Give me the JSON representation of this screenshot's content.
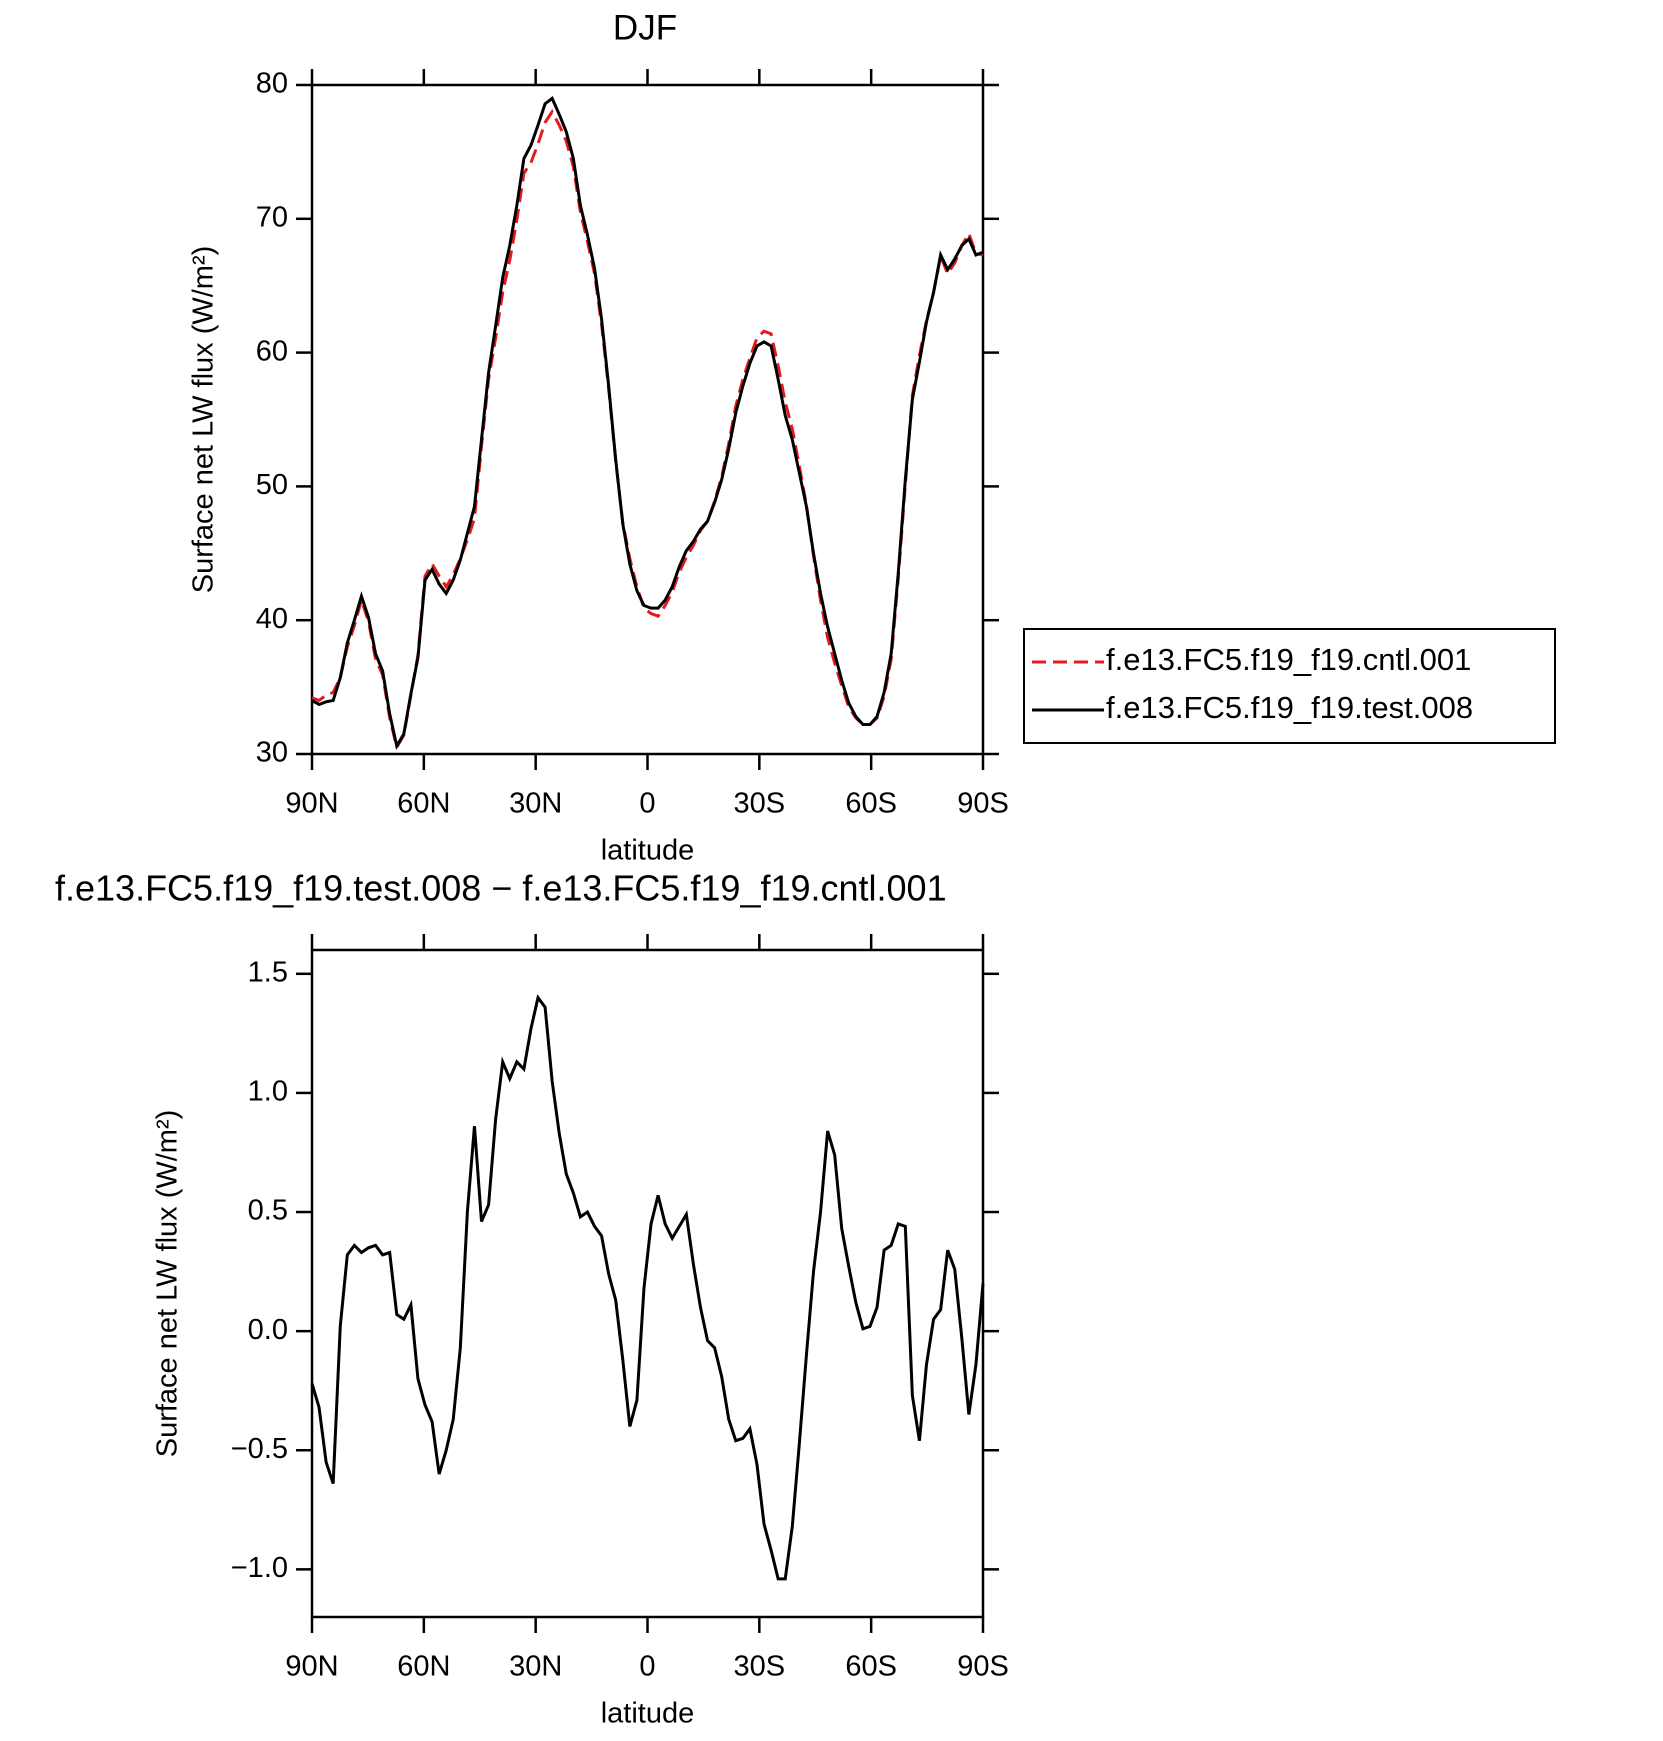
{
  "chart_data": [
    {
      "type": "line",
      "title": "DJF",
      "ylabel": "Surface net LW flux (W/m²)",
      "xlabel": "latitude",
      "x": [
        90,
        88.11,
        86.21,
        84.32,
        82.42,
        80.53,
        78.63,
        76.74,
        74.84,
        72.95,
        71.05,
        69.16,
        67.26,
        65.37,
        63.47,
        61.58,
        59.68,
        57.79,
        55.89,
        54,
        52.11,
        50.21,
        48.32,
        46.42,
        44.53,
        42.63,
        40.74,
        38.84,
        36.95,
        35.05,
        33.16,
        31.26,
        29.37,
        27.47,
        25.58,
        23.68,
        21.79,
        19.89,
        18,
        16.11,
        14.21,
        12.32,
        10.42,
        8.53,
        6.63,
        4.74,
        2.84,
        0.95,
        -0.95,
        -2.84,
        -4.74,
        -6.63,
        -8.53,
        -10.42,
        -12.32,
        -14.21,
        -16.11,
        -18,
        -19.89,
        -21.79,
        -23.68,
        -25.58,
        -27.47,
        -29.37,
        -31.26,
        -33.16,
        -35.05,
        -36.95,
        -38.84,
        -40.74,
        -42.63,
        -44.53,
        -46.42,
        -48.32,
        -50.21,
        -52.11,
        -54,
        -55.89,
        -57.79,
        -59.68,
        -61.58,
        -63.47,
        -65.37,
        -67.26,
        -69.16,
        -71.05,
        -72.95,
        -74.84,
        -76.74,
        -78.63,
        -80.53,
        -82.42,
        -84.32,
        -86.21,
        -88.11,
        -90
      ],
      "xlim": [
        90,
        -90
      ],
      "xticks": [
        {
          "value": 90,
          "label": "90N"
        },
        {
          "value": 60,
          "label": "60N"
        },
        {
          "value": 30,
          "label": "30N"
        },
        0,
        {
          "value": -30,
          "label": "30S"
        },
        {
          "value": -60,
          "label": "60S"
        },
        {
          "value": -90,
          "label": "90S"
        }
      ],
      "ylim": [
        30,
        80
      ],
      "yticks": [
        30,
        40,
        50,
        60,
        70,
        80
      ],
      "legend": "right",
      "series": [
        {
          "name": "f.e13.FC5.f19_f19.cntl.001",
          "color": "#e41a1c",
          "linestyle": "dashed",
          "values": [
            34.2,
            34.0,
            34.4,
            34.6,
            35.7,
            38.0,
            39.6,
            41.5,
            39.9,
            37.1,
            35.9,
            32.7,
            30.5,
            31.4,
            34.4,
            37.4,
            43.3,
            44.2,
            43.3,
            42.5,
            43.4,
            44.6,
            46.0,
            47.6,
            53.0,
            58.0,
            61.1,
            64.5,
            66.9,
            69.9,
            73.4,
            74.2,
            75.6,
            77.2,
            78.0,
            77.0,
            75.8,
            73.9,
            70.5,
            68.3,
            65.9,
            62.1,
            57.3,
            51.9,
            47.3,
            44.6,
            42.5,
            40.9,
            40.5,
            40.3,
            41.1,
            42.1,
            43.6,
            44.7,
            45.6,
            46.7,
            47.4,
            48.9,
            50.7,
            53.2,
            56.0,
            58.0,
            59.6,
            61.1,
            61.6,
            61.4,
            59.0,
            56.3,
            54.3,
            51.5,
            48.6,
            44.8,
            41.5,
            38.7,
            36.8,
            35.1,
            33.5,
            32.7,
            32.2,
            32.2,
            32.7,
            34.3,
            37.1,
            43.1,
            50.1,
            56.8,
            59.8,
            62.4,
            64.5,
            67.2,
            65.9,
            66.7,
            68.0,
            68.9,
            67.4,
            67.3
          ]
        },
        {
          "name": "f.e13.FC5.f19_f19.test.008",
          "color": "#000000",
          "linestyle": "solid",
          "values": [
            34.0,
            33.7,
            33.9,
            34.0,
            35.7,
            38.3,
            40.0,
            41.8,
            40.2,
            37.5,
            36.2,
            33.0,
            30.6,
            31.5,
            34.5,
            37.2,
            43.0,
            43.8,
            42.7,
            42.0,
            43.0,
            44.5,
            46.5,
            48.5,
            53.5,
            58.5,
            62.0,
            65.6,
            68.0,
            71.0,
            74.5,
            75.5,
            77.0,
            78.6,
            79.0,
            77.8,
            76.5,
            74.5,
            71.0,
            68.8,
            66.3,
            62.5,
            57.5,
            52.0,
            47.2,
            44.2,
            42.2,
            41.1,
            40.9,
            40.9,
            41.5,
            42.5,
            44.0,
            45.2,
            45.9,
            46.8,
            47.4,
            48.8,
            50.5,
            52.8,
            55.5,
            57.5,
            59.2,
            60.5,
            60.8,
            60.5,
            58.0,
            55.3,
            53.5,
            51.0,
            48.5,
            45.0,
            42.0,
            39.5,
            37.5,
            35.5,
            33.8,
            32.8,
            32.2,
            32.2,
            32.8,
            34.6,
            37.5,
            43.5,
            50.5,
            56.5,
            59.3,
            62.3,
            64.5,
            67.3,
            66.2,
            67.0,
            68.0,
            68.5,
            67.3,
            67.5
          ]
        }
      ]
    },
    {
      "type": "line",
      "title": "f.e13.FC5.f19_f19.test.008 − f.e13.FC5.f19_f19.cntl.001",
      "ylabel": "Surface net LW flux (W/m²)",
      "xlabel": "latitude",
      "x": [
        90,
        88.11,
        86.21,
        84.32,
        82.42,
        80.53,
        78.63,
        76.74,
        74.84,
        72.95,
        71.05,
        69.16,
        67.26,
        65.37,
        63.47,
        61.58,
        59.68,
        57.79,
        55.89,
        54,
        52.11,
        50.21,
        48.32,
        46.42,
        44.53,
        42.63,
        40.74,
        38.84,
        36.95,
        35.05,
        33.16,
        31.26,
        29.37,
        27.47,
        25.58,
        23.68,
        21.79,
        19.89,
        18,
        16.11,
        14.21,
        12.32,
        10.42,
        8.53,
        6.63,
        4.74,
        2.84,
        0.95,
        -0.95,
        -2.84,
        -4.74,
        -6.63,
        -8.53,
        -10.42,
        -12.32,
        -14.21,
        -16.11,
        -18,
        -19.89,
        -21.79,
        -23.68,
        -25.58,
        -27.47,
        -29.37,
        -31.26,
        -33.16,
        -35.05,
        -36.95,
        -38.84,
        -40.74,
        -42.63,
        -44.53,
        -46.42,
        -48.32,
        -50.21,
        -52.11,
        -54,
        -55.89,
        -57.79,
        -59.68,
        -61.58,
        -63.47,
        -65.37,
        -67.26,
        -69.16,
        -71.05,
        -72.95,
        -74.84,
        -76.74,
        -78.63,
        -80.53,
        -82.42,
        -84.32,
        -86.21,
        -88.11,
        -90
      ],
      "xlim": [
        90,
        -90
      ],
      "xticks": [
        {
          "value": 90,
          "label": "90N"
        },
        {
          "value": 60,
          "label": "60N"
        },
        {
          "value": 30,
          "label": "30N"
        },
        0,
        {
          "value": -30,
          "label": "30S"
        },
        {
          "value": -60,
          "label": "60S"
        },
        {
          "value": -90,
          "label": "90S"
        }
      ],
      "ylim": [
        -1.2,
        1.6
      ],
      "yticks": [
        {
          "value": -1,
          "label": "−1.0"
        },
        {
          "value": -0.5,
          "label": "−0.5"
        },
        {
          "value": 0,
          "label": "0.0"
        },
        0.5,
        {
          "value": 1,
          "label": "1.0"
        },
        1.5
      ],
      "series": [
        {
          "color": "#000000",
          "linestyle": "solid",
          "values": [
            -0.22,
            -0.32,
            -0.55,
            -0.64,
            0.02,
            0.32,
            0.36,
            0.33,
            0.35,
            0.36,
            0.32,
            0.33,
            0.07,
            0.05,
            0.11,
            -0.2,
            -0.31,
            -0.38,
            -0.6,
            -0.5,
            -0.37,
            -0.07,
            0.5,
            0.86,
            0.46,
            0.53,
            0.89,
            1.13,
            1.06,
            1.13,
            1.1,
            1.27,
            1.4,
            1.36,
            1.05,
            0.83,
            0.66,
            0.58,
            0.48,
            0.5,
            0.44,
            0.4,
            0.24,
            0.13,
            -0.12,
            -0.4,
            -0.29,
            0.18,
            0.45,
            0.57,
            0.45,
            0.39,
            0.44,
            0.49,
            0.28,
            0.1,
            -0.04,
            -0.07,
            -0.19,
            -0.37,
            -0.46,
            -0.45,
            -0.41,
            -0.56,
            -0.81,
            -0.92,
            -1.04,
            -1.04,
            -0.82,
            -0.47,
            -0.1,
            0.25,
            0.5,
            0.84,
            0.74,
            0.43,
            0.27,
            0.12,
            0.01,
            0.02,
            0.1,
            0.34,
            0.36,
            0.45,
            0.44,
            -0.27,
            -0.46,
            -0.14,
            0.05,
            0.09,
            0.34,
            0.26,
            -0.03,
            -0.35,
            -0.14,
            0.2
          ]
        }
      ]
    }
  ]
}
